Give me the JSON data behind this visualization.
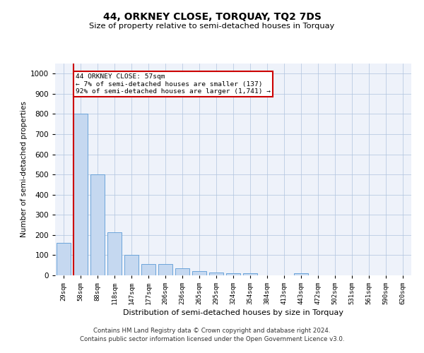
{
  "title": "44, ORKNEY CLOSE, TORQUAY, TQ2 7DS",
  "subtitle": "Size of property relative to semi-detached houses in Torquay",
  "xlabel": "Distribution of semi-detached houses by size in Torquay",
  "ylabel": "Number of semi-detached properties",
  "categories": [
    "29sqm",
    "58sqm",
    "88sqm",
    "118sqm",
    "147sqm",
    "177sqm",
    "206sqm",
    "236sqm",
    "265sqm",
    "295sqm",
    "324sqm",
    "354sqm",
    "384sqm",
    "413sqm",
    "443sqm",
    "472sqm",
    "502sqm",
    "531sqm",
    "561sqm",
    "590sqm",
    "620sqm"
  ],
  "values": [
    160,
    800,
    500,
    215,
    100,
    55,
    55,
    35,
    20,
    15,
    10,
    10,
    0,
    0,
    10,
    0,
    0,
    0,
    0,
    0,
    0
  ],
  "bar_color": "#c5d8f0",
  "bar_edge_color": "#5b9bd5",
  "grid_color": "#b0c4de",
  "annotation_text": "44 ORKNEY CLOSE: 57sqm\n← 7% of semi-detached houses are smaller (137)\n92% of semi-detached houses are larger (1,741) →",
  "annotation_box_color": "#ffffff",
  "annotation_box_edge": "#cc0000",
  "red_line_x": 1,
  "ylim": [
    0,
    1050
  ],
  "yticks": [
    0,
    100,
    200,
    300,
    400,
    500,
    600,
    700,
    800,
    900,
    1000
  ],
  "footer_line1": "Contains HM Land Registry data © Crown copyright and database right 2024.",
  "footer_line2": "Contains public sector information licensed under the Open Government Licence v3.0.",
  "background_color": "#eef2fa",
  "fig_bg_color": "#ffffff"
}
